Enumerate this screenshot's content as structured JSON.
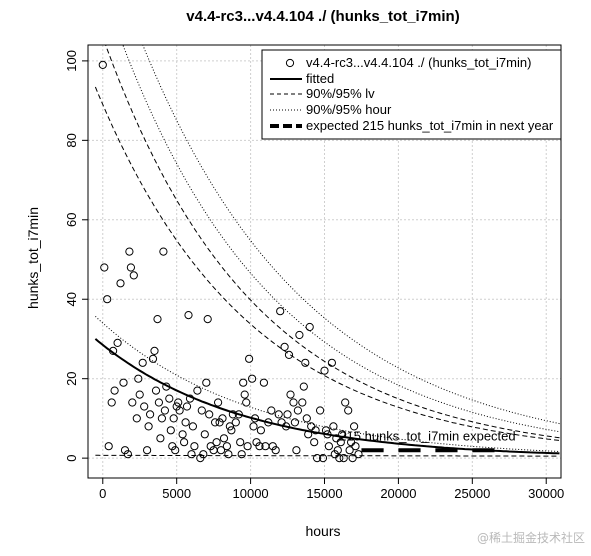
{
  "chart_data": {
    "type": "scatter",
    "title": "v4.4-rc3...v4.4.104 ./ (hunks_tot_i7min)",
    "xlabel": "hours",
    "ylabel": "hunks_tot_i7min",
    "xlim": [
      -1000,
      31000
    ],
    "ylim": [
      -5,
      104
    ],
    "xticks": [
      0,
      5000,
      10000,
      15000,
      20000,
      25000,
      30000
    ],
    "yticks": [
      0,
      20,
      40,
      60,
      80,
      100
    ],
    "grid": true,
    "legend_position": "top-right",
    "legend": [
      {
        "label": "v4.4-rc3...v4.4.104 ./ (hunks_tot_i7min)",
        "style": "circle"
      },
      {
        "label": "fitted",
        "style": "solid"
      },
      {
        "label": "90%/95% lv",
        "style": "dashed"
      },
      {
        "label": "90%/95% hour",
        "style": "dotted"
      },
      {
        "label": "expected 215 hunks_tot_i7min in next year",
        "style": "thickdash"
      }
    ],
    "annotation": {
      "text": "215 hunks_tot_i7min expected",
      "x": 16000,
      "y": 4.5
    },
    "points": [
      [
        0,
        99
      ],
      [
        100,
        48
      ],
      [
        300,
        40
      ],
      [
        400,
        3
      ],
      [
        600,
        14
      ],
      [
        700,
        27
      ],
      [
        800,
        17
      ],
      [
        1000,
        29
      ],
      [
        1200,
        44
      ],
      [
        1400,
        19
      ],
      [
        1500,
        2
      ],
      [
        1700,
        1
      ],
      [
        1800,
        52
      ],
      [
        1900,
        48
      ],
      [
        2000,
        14
      ],
      [
        2100,
        46
      ],
      [
        2300,
        10
      ],
      [
        2400,
        20
      ],
      [
        2500,
        16
      ],
      [
        2700,
        24
      ],
      [
        2800,
        13
      ],
      [
        3000,
        2
      ],
      [
        3100,
        8
      ],
      [
        3200,
        11
      ],
      [
        3400,
        25
      ],
      [
        3500,
        27
      ],
      [
        3600,
        17
      ],
      [
        3700,
        35
      ],
      [
        3800,
        14
      ],
      [
        3900,
        5
      ],
      [
        4000,
        10
      ],
      [
        4100,
        52
      ],
      [
        4200,
        12
      ],
      [
        4300,
        18
      ],
      [
        4500,
        15
      ],
      [
        4600,
        7
      ],
      [
        4700,
        3
      ],
      [
        4800,
        10
      ],
      [
        4900,
        2
      ],
      [
        5000,
        13
      ],
      [
        5100,
        14
      ],
      [
        5200,
        12
      ],
      [
        5400,
        6
      ],
      [
        5500,
        4
      ],
      [
        5600,
        9
      ],
      [
        5700,
        13
      ],
      [
        5800,
        36
      ],
      [
        5900,
        15
      ],
      [
        6000,
        1
      ],
      [
        6100,
        8
      ],
      [
        6200,
        3
      ],
      [
        6400,
        17
      ],
      [
        6600,
        0
      ],
      [
        6700,
        12
      ],
      [
        6800,
        1
      ],
      [
        6900,
        6
      ],
      [
        7000,
        19
      ],
      [
        7100,
        35
      ],
      [
        7200,
        11
      ],
      [
        7300,
        3
      ],
      [
        7500,
        2
      ],
      [
        7600,
        9
      ],
      [
        7700,
        4
      ],
      [
        7800,
        14
      ],
      [
        7900,
        9
      ],
      [
        8000,
        2
      ],
      [
        8100,
        10
      ],
      [
        8200,
        5
      ],
      [
        8400,
        3
      ],
      [
        8500,
        1
      ],
      [
        8600,
        8
      ],
      [
        8700,
        7
      ],
      [
        8800,
        11
      ],
      [
        9000,
        9
      ],
      [
        9200,
        11
      ],
      [
        9300,
        4
      ],
      [
        9400,
        1
      ],
      [
        9500,
        19
      ],
      [
        9600,
        16
      ],
      [
        9700,
        14
      ],
      [
        9800,
        3
      ],
      [
        9900,
        25
      ],
      [
        10100,
        20
      ],
      [
        10200,
        8
      ],
      [
        10300,
        10
      ],
      [
        10400,
        4
      ],
      [
        10600,
        3
      ],
      [
        10700,
        7
      ],
      [
        10900,
        19
      ],
      [
        11000,
        3
      ],
      [
        11200,
        9
      ],
      [
        11400,
        12
      ],
      [
        11500,
        3
      ],
      [
        11700,
        2
      ],
      [
        11900,
        11
      ],
      [
        12000,
        37
      ],
      [
        12100,
        9
      ],
      [
        12300,
        28
      ],
      [
        12400,
        8
      ],
      [
        12500,
        11
      ],
      [
        12600,
        26
      ],
      [
        12700,
        16
      ],
      [
        12900,
        14
      ],
      [
        13000,
        9
      ],
      [
        13100,
        2
      ],
      [
        13200,
        12
      ],
      [
        13300,
        31
      ],
      [
        13500,
        14
      ],
      [
        13600,
        18
      ],
      [
        13700,
        24
      ],
      [
        13800,
        10
      ],
      [
        13900,
        6
      ],
      [
        14000,
        33
      ],
      [
        14100,
        8
      ],
      [
        14300,
        4
      ],
      [
        14400,
        7
      ],
      [
        14500,
        0
      ],
      [
        14700,
        12
      ],
      [
        14900,
        0
      ],
      [
        15000,
        22
      ],
      [
        15100,
        7
      ],
      [
        15200,
        6
      ],
      [
        15300,
        3
      ],
      [
        15500,
        24
      ],
      [
        15600,
        8
      ],
      [
        15700,
        1
      ],
      [
        15800,
        5
      ],
      [
        15900,
        2
      ],
      [
        16000,
        0
      ],
      [
        16100,
        4
      ],
      [
        16200,
        6
      ],
      [
        16300,
        0
      ],
      [
        16400,
        14
      ],
      [
        16600,
        12
      ],
      [
        16700,
        2
      ],
      [
        16800,
        4
      ],
      [
        16900,
        0
      ],
      [
        17000,
        8
      ],
      [
        17100,
        3
      ],
      [
        17300,
        1
      ]
    ],
    "fitted": {
      "a": 28.5,
      "k": 0.000103
    },
    "bands": [
      {
        "kind": "lv_upper",
        "style": "dashed",
        "a": 89,
        "k": 9.7e-05
      },
      {
        "kind": "lv_upper",
        "style": "dashed",
        "a": 106,
        "k": 9.8e-05
      },
      {
        "kind": "lv_lower",
        "style": "dashed",
        "a": 0.7,
        "k": 1e-05
      },
      {
        "kind": "hour_upper",
        "style": "dotted",
        "a": 118,
        "k": 9.3e-05
      },
      {
        "kind": "hour_upper",
        "style": "dotted",
        "a": 132,
        "k": 8.8e-05
      },
      {
        "kind": "hour_lower",
        "style": "dotted",
        "a": 34,
        "k": 9.75e-05
      }
    ],
    "expected_segments": [
      [
        17500,
        19000
      ],
      [
        20000,
        21500
      ],
      [
        22500,
        24000
      ],
      [
        25000,
        26500
      ]
    ],
    "expected_level": 2
  },
  "watermark": "@稀土掘金技术社区"
}
